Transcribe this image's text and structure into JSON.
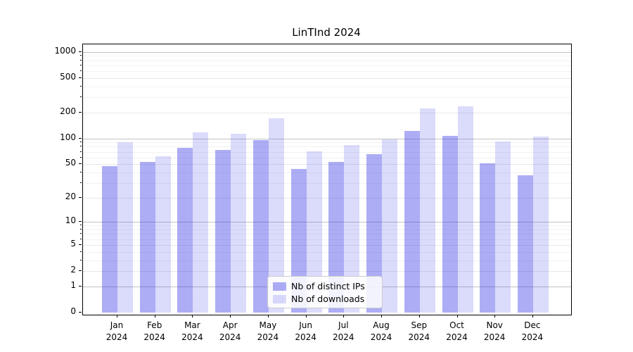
{
  "title": "LinTInd 2024",
  "chart_data": {
    "type": "bar",
    "title": "LinTInd 2024",
    "xlabel": "",
    "ylabel": "",
    "year": "2024",
    "categories": [
      "Jan",
      "Feb",
      "Mar",
      "Apr",
      "May",
      "Jun",
      "Jul",
      "Aug",
      "Sep",
      "Oct",
      "Nov",
      "Dec"
    ],
    "series": [
      {
        "name": "Nb of distinct IPs",
        "values": [
          47,
          53,
          77,
          74,
          95,
          44,
          53,
          66,
          122,
          108,
          51,
          37
        ]
      },
      {
        "name": "Nb of downloads",
        "values": [
          90,
          62,
          117,
          114,
          170,
          71,
          84,
          97,
          225,
          235,
          93,
          105
        ]
      }
    ],
    "yscale": "log1p",
    "yticks": [
      0,
      1,
      2,
      5,
      10,
      20,
      50,
      100,
      200,
      500,
      1000
    ],
    "minor_yticks": [
      3,
      4,
      6,
      7,
      8,
      9,
      30,
      40,
      60,
      70,
      80,
      90,
      300,
      400,
      600,
      700,
      800,
      900
    ],
    "ylim_top": 1200,
    "grid": true,
    "legend_position": "lower center"
  },
  "colors": {
    "bar_distinct_ips": "rgba(40,40,230,0.38)",
    "bar_downloads": "rgba(40,40,230,0.17)",
    "grid_decade": "#c3c3c3",
    "grid_major": "#e8e8e8",
    "grid_minor": "#f2f2f2",
    "spine": "#000000",
    "text": "#000000"
  }
}
